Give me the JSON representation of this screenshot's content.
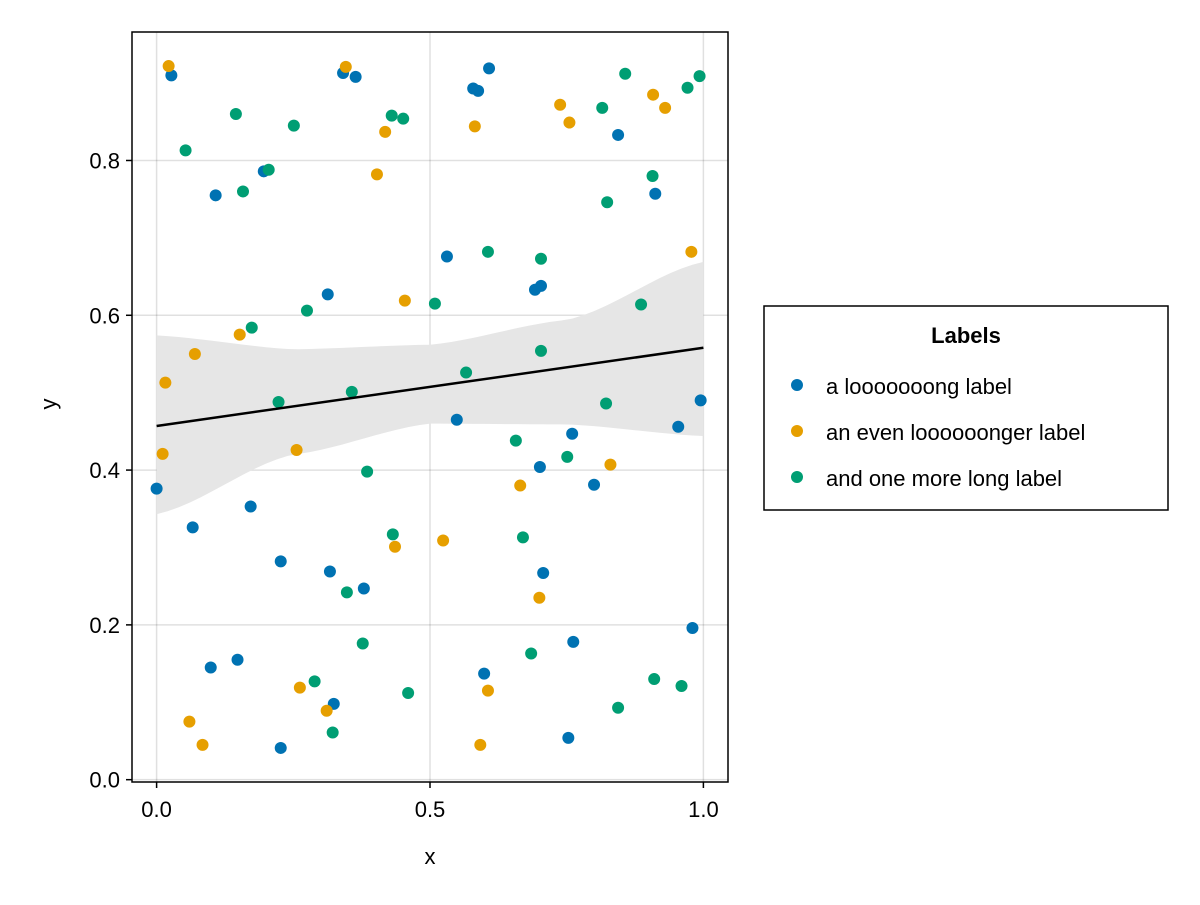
{
  "chart_data": {
    "type": "scatter",
    "title": "",
    "xlabel": "x",
    "ylabel": "y",
    "xlim": [
      -0.045,
      1.045
    ],
    "ylim": [
      -0.003,
      0.966
    ],
    "xticks": [
      0.0,
      0.5,
      1.0
    ],
    "xtick_labels": [
      "0.0",
      "0.5",
      "1.0"
    ],
    "yticks": [
      0.0,
      0.2,
      0.4,
      0.6,
      0.8
    ],
    "ytick_labels": [
      "0.0",
      "0.2",
      "0.4",
      "0.6",
      "0.8"
    ],
    "grid": true,
    "legend": {
      "title": "Labels",
      "placement": "right"
    },
    "series": [
      {
        "name": "a looooooong label",
        "color": "#0072b2",
        "points": [
          [
            0.0,
            0.376
          ],
          [
            0.066,
            0.326
          ],
          [
            0.027,
            0.91
          ],
          [
            0.108,
            0.755
          ],
          [
            0.172,
            0.353
          ],
          [
            0.196,
            0.786
          ],
          [
            0.099,
            0.145
          ],
          [
            0.148,
            0.155
          ],
          [
            0.227,
            0.282
          ],
          [
            0.227,
            0.041
          ],
          [
            0.313,
            0.627
          ],
          [
            0.317,
            0.269
          ],
          [
            0.324,
            0.098
          ],
          [
            0.341,
            0.913
          ],
          [
            0.364,
            0.908
          ],
          [
            0.379,
            0.247
          ],
          [
            0.531,
            0.676
          ],
          [
            0.549,
            0.465
          ],
          [
            0.579,
            0.893
          ],
          [
            0.588,
            0.89
          ],
          [
            0.608,
            0.919
          ],
          [
            0.599,
            0.137
          ],
          [
            0.692,
            0.633
          ],
          [
            0.703,
            0.638
          ],
          [
            0.701,
            0.404
          ],
          [
            0.707,
            0.267
          ],
          [
            0.76,
            0.447
          ],
          [
            0.762,
            0.178
          ],
          [
            0.753,
            0.054
          ],
          [
            0.8,
            0.381
          ],
          [
            0.844,
            0.833
          ],
          [
            0.912,
            0.757
          ],
          [
            0.954,
            0.456
          ],
          [
            0.98,
            0.196
          ],
          [
            0.995,
            0.49
          ]
        ]
      },
      {
        "name": "an even loooooonger label",
        "color": "#e69f00",
        "points": [
          [
            0.022,
            0.922
          ],
          [
            0.016,
            0.513
          ],
          [
            0.07,
            0.55
          ],
          [
            0.011,
            0.421
          ],
          [
            0.06,
            0.075
          ],
          [
            0.084,
            0.045
          ],
          [
            0.152,
            0.575
          ],
          [
            0.256,
            0.426
          ],
          [
            0.262,
            0.119
          ],
          [
            0.311,
            0.089
          ],
          [
            0.346,
            0.921
          ],
          [
            0.403,
            0.782
          ],
          [
            0.418,
            0.837
          ],
          [
            0.454,
            0.619
          ],
          [
            0.436,
            0.301
          ],
          [
            0.524,
            0.309
          ],
          [
            0.582,
            0.844
          ],
          [
            0.592,
            0.045
          ],
          [
            0.606,
            0.115
          ],
          [
            0.665,
            0.38
          ],
          [
            0.7,
            0.235
          ],
          [
            0.738,
            0.872
          ],
          [
            0.755,
            0.849
          ],
          [
            0.83,
            0.407
          ],
          [
            0.908,
            0.885
          ],
          [
            0.93,
            0.868
          ],
          [
            0.978,
            0.682
          ]
        ]
      },
      {
        "name": "and one more long label",
        "color": "#009e73",
        "points": [
          [
            0.053,
            0.813
          ],
          [
            0.145,
            0.86
          ],
          [
            0.158,
            0.76
          ],
          [
            0.174,
            0.584
          ],
          [
            0.205,
            0.788
          ],
          [
            0.251,
            0.845
          ],
          [
            0.223,
            0.488
          ],
          [
            0.275,
            0.606
          ],
          [
            0.289,
            0.127
          ],
          [
            0.322,
            0.061
          ],
          [
            0.348,
            0.242
          ],
          [
            0.357,
            0.501
          ],
          [
            0.377,
            0.176
          ],
          [
            0.385,
            0.398
          ],
          [
            0.43,
            0.858
          ],
          [
            0.451,
            0.854
          ],
          [
            0.432,
            0.317
          ],
          [
            0.46,
            0.112
          ],
          [
            0.509,
            0.615
          ],
          [
            0.566,
            0.526
          ],
          [
            0.606,
            0.682
          ],
          [
            0.657,
            0.438
          ],
          [
            0.67,
            0.313
          ],
          [
            0.685,
            0.163
          ],
          [
            0.703,
            0.673
          ],
          [
            0.703,
            0.554
          ],
          [
            0.751,
            0.417
          ],
          [
            0.815,
            0.868
          ],
          [
            0.824,
            0.746
          ],
          [
            0.822,
            0.486
          ],
          [
            0.844,
            0.093
          ],
          [
            0.857,
            0.912
          ],
          [
            0.886,
            0.614
          ],
          [
            0.907,
            0.78
          ],
          [
            0.91,
            0.13
          ],
          [
            0.96,
            0.121
          ],
          [
            0.971,
            0.894
          ],
          [
            0.993,
            0.909
          ]
        ]
      }
    ],
    "regression": {
      "color": "#000000",
      "band_color": "#e6e6e6",
      "line": [
        [
          0.0,
          0.457
        ],
        [
          1.0,
          0.558
        ]
      ],
      "band_x": [
        0.0,
        0.25,
        0.5,
        0.75,
        1.0
      ],
      "band_upper": [
        0.574,
        0.556,
        0.562,
        0.594,
        0.669
      ],
      "band_lower": [
        0.343,
        0.42,
        0.46,
        0.459,
        0.444
      ]
    }
  }
}
